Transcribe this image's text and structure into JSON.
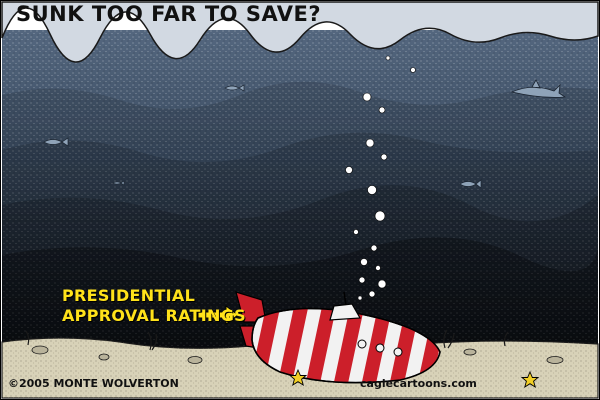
{
  "title": "SUNK TOO FAR TO SAVE?",
  "label": {
    "line1": "PRESIDENTIAL",
    "line2": "APPROVAL RATINGS"
  },
  "credits": {
    "copyright": "©2005 MONTE WOLVERTON",
    "site": "caglecartoons.com"
  },
  "colors": {
    "surface": "#cfd6df",
    "water_top": "#4a5d75",
    "water_deep": "#0e1117",
    "seabed": "#d8d2b8",
    "label": "#ffe21a",
    "sub_red": "#cc1f2a",
    "sub_white": "#f2f2f2",
    "starfish": "#f2cf26"
  },
  "icons": [
    "fish-icon",
    "shark-icon",
    "submarine-icon",
    "bubble-icon",
    "starfish-icon",
    "arrow-icon"
  ]
}
